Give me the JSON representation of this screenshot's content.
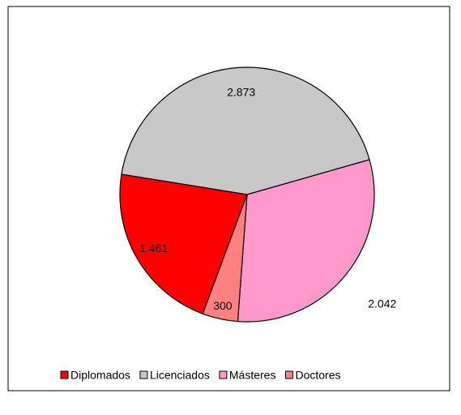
{
  "chart_data": {
    "type": "pie",
    "categories": [
      "Diplomados",
      "Licenciados",
      "Másteres",
      "Doctores"
    ],
    "values": [
      1461,
      2873,
      2042,
      300
    ],
    "value_labels": [
      "1.461",
      "2.873",
      "2.042",
      "300"
    ],
    "colors": [
      "#ff0000",
      "#c8c8c8",
      "#ff99cc",
      "#ff8080"
    ],
    "legend": "bottom"
  }
}
